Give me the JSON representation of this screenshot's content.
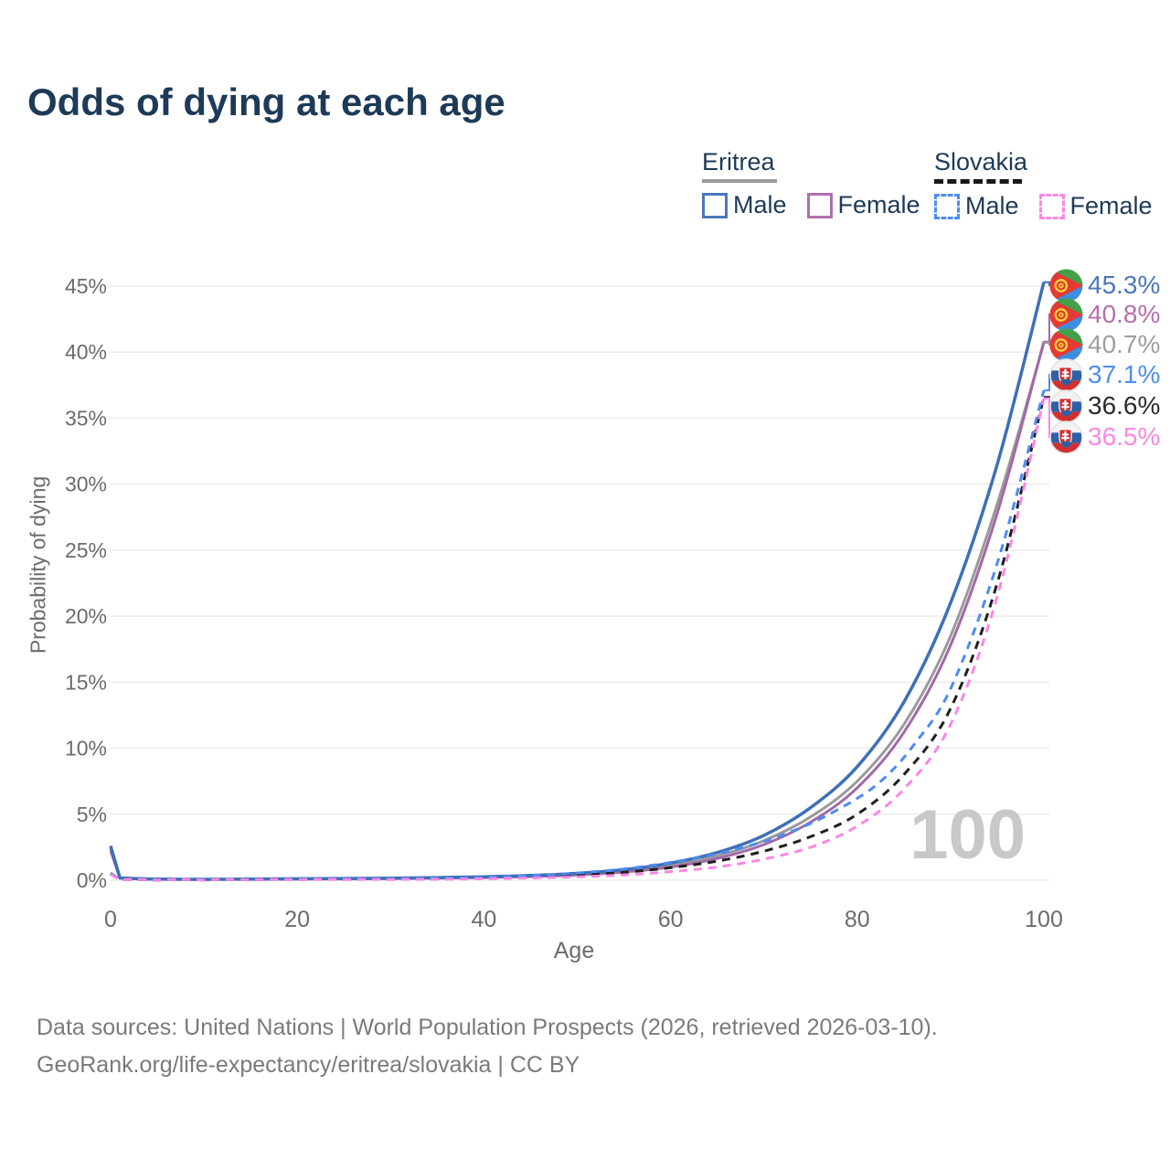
{
  "title": "Odds of dying at each age",
  "legend": {
    "groups": [
      {
        "name": "Eritrea",
        "line_style": "solid",
        "line_color": "#9a9a9a",
        "items": [
          {
            "label": "Male",
            "color": "#4a78bb"
          },
          {
            "label": "Female",
            "color": "#b06fae"
          }
        ]
      },
      {
        "name": "Slovakia",
        "line_style": "dashed",
        "line_color": "#1f1f1f",
        "items": [
          {
            "label": "Male",
            "color": "#4d8ef5"
          },
          {
            "label": "Female",
            "color": "#fb87e4"
          }
        ]
      }
    ]
  },
  "watermark_age": "100",
  "footer": {
    "line1": "Data sources: United Nations | World Population Prospects (2026, retrieved 2026-03-10).",
    "line2": "GeoRank.org/life-expectancy/eritrea/slovakia | CC BY"
  },
  "chart_data": {
    "type": "line",
    "title": "Odds of dying at each age",
    "xlabel": "Age",
    "ylabel": "Probability of dying",
    "x_ticks": [
      0,
      20,
      40,
      60,
      80,
      100
    ],
    "y_tick_labels": [
      "0%",
      "5%",
      "10%",
      "15%",
      "20%",
      "25%",
      "30%",
      "35%",
      "40%",
      "45%"
    ],
    "xlim": [
      0,
      100
    ],
    "ylim_percent": [
      0,
      45
    ],
    "grid": true,
    "legend_position": "top-right",
    "ages": [
      0,
      1,
      5,
      10,
      15,
      20,
      25,
      30,
      35,
      40,
      45,
      50,
      55,
      60,
      65,
      70,
      75,
      80,
      85,
      90,
      95,
      100
    ],
    "series": [
      {
        "name": "Eritrea male",
        "slug": "eritrea-male",
        "country": "eritrea",
        "color": "#3f70b6",
        "label_color": "#4a78bb",
        "dashed": false,
        "end_label": "45.3%",
        "values": [
          2.6,
          0.17,
          0.08,
          0.07,
          0.08,
          0.11,
          0.13,
          0.16,
          0.2,
          0.26,
          0.36,
          0.52,
          0.8,
          1.3,
          2.1,
          3.4,
          5.5,
          8.6,
          13.5,
          21.0,
          31.5,
          45.3
        ]
      },
      {
        "name": "Eritrea female",
        "slug": "eritrea-female",
        "country": "eritrea",
        "color": "#a269a8",
        "label_color": "#b66fae",
        "dashed": false,
        "end_label": "40.8%",
        "values": [
          2.25,
          0.15,
          0.07,
          0.05,
          0.06,
          0.08,
          0.1,
          0.12,
          0.15,
          0.2,
          0.28,
          0.4,
          0.62,
          1.0,
          1.65,
          2.7,
          4.4,
          7.0,
          11.2,
          17.8,
          27.8,
          40.8
        ]
      },
      {
        "name": "Eritrea both sexes",
        "slug": "eritrea-both",
        "country": "eritrea",
        "color": "#9a9a9a",
        "label_color": "#9e9e9e",
        "dashed": false,
        "end_label": "40.7%",
        "values": [
          2.4,
          0.16,
          0.07,
          0.06,
          0.07,
          0.1,
          0.12,
          0.14,
          0.18,
          0.23,
          0.32,
          0.46,
          0.7,
          1.15,
          1.85,
          3.0,
          4.8,
          7.5,
          11.8,
          18.5,
          28.5,
          40.7
        ]
      },
      {
        "name": "Slovakia male",
        "slug": "slovakia-male",
        "country": "slovakia",
        "color": "#4d8bf2",
        "label_color": "#4d8ef5",
        "dashed": true,
        "end_label": "37.1%",
        "ages_override": [
          0,
          1,
          5,
          10,
          15,
          20,
          25,
          30,
          35,
          40,
          45,
          50,
          55,
          60,
          65,
          70,
          75,
          80,
          83,
          86,
          90,
          95,
          100
        ],
        "values": [
          0.55,
          0.04,
          0.02,
          0.02,
          0.04,
          0.08,
          0.09,
          0.11,
          0.15,
          0.22,
          0.35,
          0.55,
          0.85,
          1.35,
          2.0,
          2.95,
          4.3,
          6.2,
          7.8,
          10.2,
          14.5,
          24.0,
          37.1
        ]
      },
      {
        "name": "Slovakia both sexes",
        "slug": "slovakia-both",
        "country": "slovakia",
        "color": "#1f1f1f",
        "label_color": "#2b2b2b",
        "dashed": true,
        "end_label": "36.6%",
        "values": [
          0.5,
          0.04,
          0.01,
          0.02,
          0.03,
          0.06,
          0.07,
          0.08,
          0.11,
          0.16,
          0.25,
          0.4,
          0.6,
          0.95,
          1.45,
          2.2,
          3.3,
          5.0,
          8.0,
          13.0,
          22.5,
          36.6
        ]
      },
      {
        "name": "Slovakia female",
        "slug": "slovakia-female",
        "country": "slovakia",
        "color": "#fb87e4",
        "label_color": "#fb87e4",
        "dashed": true,
        "end_label": "36.5%",
        "values": [
          0.45,
          0.03,
          0.01,
          0.01,
          0.02,
          0.03,
          0.04,
          0.05,
          0.07,
          0.11,
          0.17,
          0.26,
          0.4,
          0.65,
          1.0,
          1.6,
          2.5,
          4.1,
          6.9,
          11.8,
          21.5,
          36.5
        ]
      }
    ]
  }
}
